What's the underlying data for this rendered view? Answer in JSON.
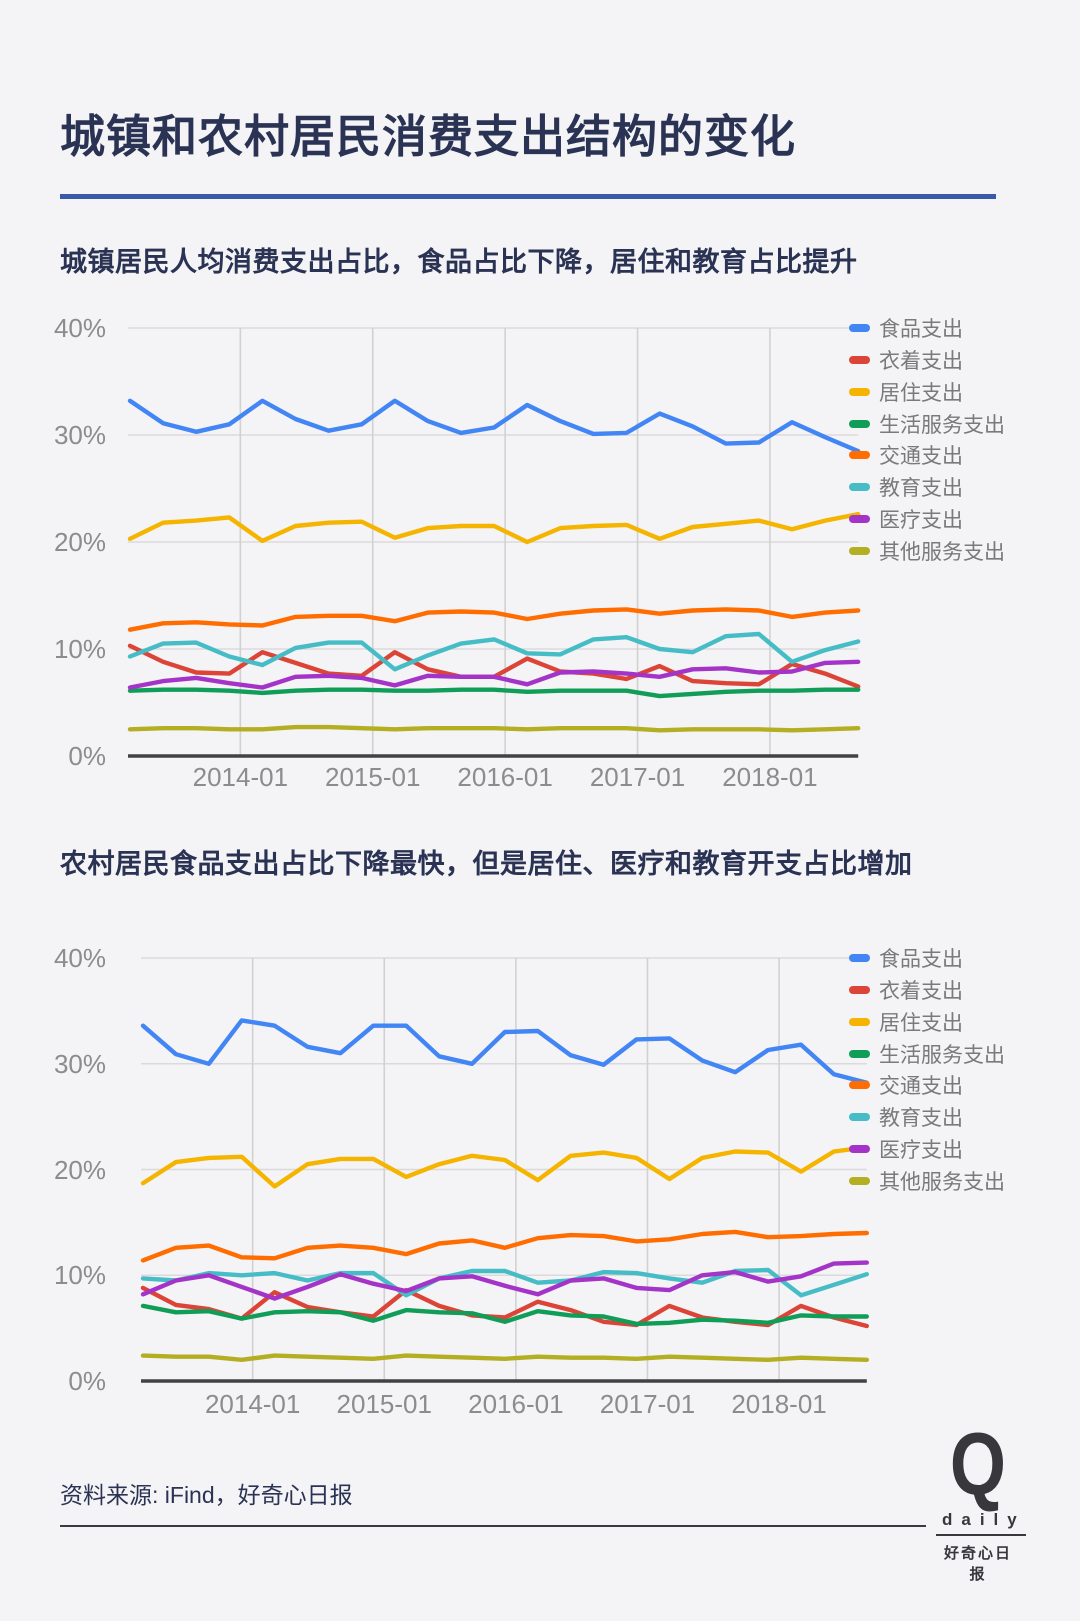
{
  "page": {
    "background": "#F4F3F5"
  },
  "header": {
    "title": "城镇和农村居民消费支出结构的变化"
  },
  "footer": {
    "source": "资料来源: iFind，好奇心日报",
    "logo_mark": "Q",
    "logo_name": "daily",
    "logo_cn": "好奇心日报"
  },
  "colors": {
    "title_navy": "#2A3354",
    "rule_blue": "#3A59A8",
    "axis_text": "#8C8C8C",
    "legend_text": "#7A7A7A",
    "gridline": "#DBDADB",
    "vertical_gridline": "#D2D1D2",
    "axis_line": "#424242"
  },
  "chart_data": [
    {
      "type": "line",
      "title": "城镇居民人均消费支出占比，食品占比下降，居住和教育占比提升",
      "x": [
        "2013-03",
        "2013-06",
        "2013-09",
        "2013-12",
        "2014-03",
        "2014-06",
        "2014-09",
        "2014-12",
        "2015-03",
        "2015-06",
        "2015-09",
        "2015-12",
        "2016-03",
        "2016-06",
        "2016-09",
        "2016-12",
        "2017-03",
        "2017-06",
        "2017-09",
        "2017-12",
        "2018-03",
        "2018-06",
        "2018-09"
      ],
      "x_tick_labels": [
        "2014-01",
        "2015-01",
        "2016-01",
        "2017-01",
        "2018-01"
      ],
      "y_ticks": [
        "40%",
        "30%",
        "20%",
        "10%",
        "0%"
      ],
      "ylim": [
        0,
        40
      ],
      "grid": true,
      "legend_position": "right",
      "series": [
        {
          "key": "food",
          "name": "食品支出",
          "color": "#4285F4",
          "values": [
            33.2,
            31.1,
            30.3,
            31.0,
            33.2,
            31.5,
            30.4,
            31.0,
            33.2,
            31.3,
            30.2,
            30.7,
            32.8,
            31.3,
            30.1,
            30.2,
            32.0,
            30.8,
            29.2,
            29.3,
            31.2,
            29.8,
            28.5
          ]
        },
        {
          "key": "clothing",
          "name": "衣着支出",
          "color": "#DB4437",
          "values": [
            10.3,
            8.8,
            7.8,
            7.7,
            9.7,
            8.7,
            7.7,
            7.5,
            9.7,
            8.1,
            7.4,
            7.4,
            9.1,
            7.9,
            7.7,
            7.2,
            8.4,
            7.0,
            6.8,
            6.7,
            8.6,
            7.7,
            6.5
          ]
        },
        {
          "key": "housing",
          "name": "居住支出",
          "color": "#F4B400",
          "values": [
            20.3,
            21.8,
            22.0,
            22.3,
            20.1,
            21.5,
            21.8,
            21.9,
            20.4,
            21.3,
            21.5,
            21.5,
            20.0,
            21.3,
            21.5,
            21.6,
            20.3,
            21.4,
            21.7,
            22.0,
            21.2,
            22.0,
            22.6
          ]
        },
        {
          "key": "household-services",
          "name": "生活服务支出",
          "color": "#0F9D58",
          "values": [
            6.1,
            6.2,
            6.2,
            6.1,
            5.9,
            6.1,
            6.2,
            6.2,
            6.1,
            6.1,
            6.2,
            6.2,
            6.0,
            6.1,
            6.1,
            6.1,
            5.6,
            5.8,
            6.0,
            6.1,
            6.1,
            6.2,
            6.2
          ]
        },
        {
          "key": "transport",
          "name": "交通支出",
          "color": "#FF6D01",
          "values": [
            11.8,
            12.4,
            12.5,
            12.3,
            12.2,
            13.0,
            13.1,
            13.1,
            12.6,
            13.4,
            13.5,
            13.4,
            12.8,
            13.3,
            13.6,
            13.7,
            13.3,
            13.6,
            13.7,
            13.6,
            13.0,
            13.4,
            13.6
          ]
        },
        {
          "key": "education",
          "name": "教育支出",
          "color": "#46BDC6",
          "values": [
            9.3,
            10.5,
            10.6,
            9.3,
            8.5,
            10.1,
            10.6,
            10.6,
            8.1,
            9.4,
            10.5,
            10.9,
            9.6,
            9.5,
            10.9,
            11.1,
            10.0,
            9.7,
            11.2,
            11.4,
            8.8,
            9.9,
            10.7
          ]
        },
        {
          "key": "medical",
          "name": "医疗支出",
          "color": "#A434C8",
          "values": [
            6.4,
            7.0,
            7.3,
            6.8,
            6.4,
            7.4,
            7.5,
            7.3,
            6.6,
            7.5,
            7.4,
            7.4,
            6.7,
            7.8,
            7.9,
            7.7,
            7.4,
            8.1,
            8.2,
            7.8,
            7.9,
            8.7,
            8.8
          ]
        },
        {
          "key": "other-services",
          "name": "其他服务支出",
          "color": "#B4AF22",
          "values": [
            2.5,
            2.6,
            2.6,
            2.5,
            2.5,
            2.7,
            2.7,
            2.6,
            2.5,
            2.6,
            2.6,
            2.6,
            2.5,
            2.6,
            2.6,
            2.6,
            2.4,
            2.5,
            2.5,
            2.5,
            2.4,
            2.5,
            2.6
          ]
        }
      ]
    },
    {
      "type": "line",
      "title": "农村居民食品支出占比下降最快，但是居住、医疗和教育开支占比增加",
      "x": [
        "2013-03",
        "2013-06",
        "2013-09",
        "2013-12",
        "2014-03",
        "2014-06",
        "2014-09",
        "2014-12",
        "2015-03",
        "2015-06",
        "2015-09",
        "2015-12",
        "2016-03",
        "2016-06",
        "2016-09",
        "2016-12",
        "2017-03",
        "2017-06",
        "2017-09",
        "2017-12",
        "2018-03",
        "2018-06",
        "2018-09"
      ],
      "x_tick_labels": [
        "2014-01",
        "2015-01",
        "2016-01",
        "2017-01",
        "2018-01"
      ],
      "y_ticks": [
        "40%",
        "30%",
        "20%",
        "10%",
        "0%"
      ],
      "ylim": [
        0,
        40
      ],
      "grid": true,
      "legend_position": "right",
      "series": [
        {
          "key": "food",
          "name": "食品支出",
          "color": "#4285F4",
          "values": [
            33.6,
            30.9,
            30.0,
            34.1,
            33.6,
            31.6,
            31.0,
            33.6,
            33.6,
            30.7,
            30.0,
            33.0,
            33.1,
            30.8,
            29.9,
            32.3,
            32.4,
            30.3,
            29.2,
            31.3,
            31.8,
            29.0,
            28.2
          ]
        },
        {
          "key": "clothing",
          "name": "衣着支出",
          "color": "#DB4437",
          "values": [
            8.8,
            7.2,
            6.8,
            5.9,
            8.4,
            7.0,
            6.5,
            6.1,
            8.6,
            7.1,
            6.2,
            6.0,
            7.5,
            6.7,
            5.6,
            5.3,
            7.1,
            6.0,
            5.6,
            5.3,
            7.1,
            6.0,
            5.2
          ]
        },
        {
          "key": "housing",
          "name": "居住支出",
          "color": "#F4B400",
          "values": [
            18.7,
            20.7,
            21.1,
            21.2,
            18.4,
            20.5,
            21.0,
            21.0,
            19.3,
            20.5,
            21.3,
            20.9,
            19.0,
            21.3,
            21.6,
            21.1,
            19.1,
            21.1,
            21.7,
            21.6,
            19.8,
            21.7,
            22.1
          ]
        },
        {
          "key": "household-services",
          "name": "生活服务支出",
          "color": "#0F9D58",
          "values": [
            7.1,
            6.5,
            6.6,
            5.9,
            6.5,
            6.6,
            6.5,
            5.7,
            6.7,
            6.5,
            6.4,
            5.6,
            6.6,
            6.2,
            6.1,
            5.4,
            5.5,
            5.8,
            5.7,
            5.5,
            6.2,
            6.1,
            6.1
          ]
        },
        {
          "key": "transport",
          "name": "交通支出",
          "color": "#FF6D01",
          "values": [
            11.4,
            12.6,
            12.8,
            11.7,
            11.6,
            12.6,
            12.8,
            12.6,
            12.0,
            13.0,
            13.3,
            12.6,
            13.5,
            13.8,
            13.7,
            13.2,
            13.4,
            13.9,
            14.1,
            13.6,
            13.7,
            13.9,
            14.0
          ]
        },
        {
          "key": "education",
          "name": "教育支出",
          "color": "#46BDC6",
          "values": [
            9.7,
            9.5,
            10.2,
            10.0,
            10.2,
            9.5,
            10.2,
            10.2,
            8.1,
            9.7,
            10.4,
            10.4,
            9.3,
            9.5,
            10.3,
            10.2,
            9.7,
            9.3,
            10.4,
            10.5,
            8.1,
            9.1,
            10.1
          ]
        },
        {
          "key": "medical",
          "name": "医疗支出",
          "color": "#A434C8",
          "values": [
            8.2,
            9.5,
            10.0,
            8.9,
            7.8,
            8.9,
            10.1,
            9.2,
            8.5,
            9.7,
            9.9,
            9.0,
            8.2,
            9.5,
            9.7,
            8.8,
            8.6,
            10.0,
            10.3,
            9.4,
            9.9,
            11.1,
            11.2
          ]
        },
        {
          "key": "other-services",
          "name": "其他服务支出",
          "color": "#B4AF22",
          "values": [
            2.4,
            2.3,
            2.3,
            2.0,
            2.4,
            2.3,
            2.2,
            2.1,
            2.4,
            2.3,
            2.2,
            2.1,
            2.3,
            2.2,
            2.2,
            2.1,
            2.3,
            2.2,
            2.1,
            2.0,
            2.2,
            2.1,
            2.0
          ]
        }
      ]
    }
  ]
}
